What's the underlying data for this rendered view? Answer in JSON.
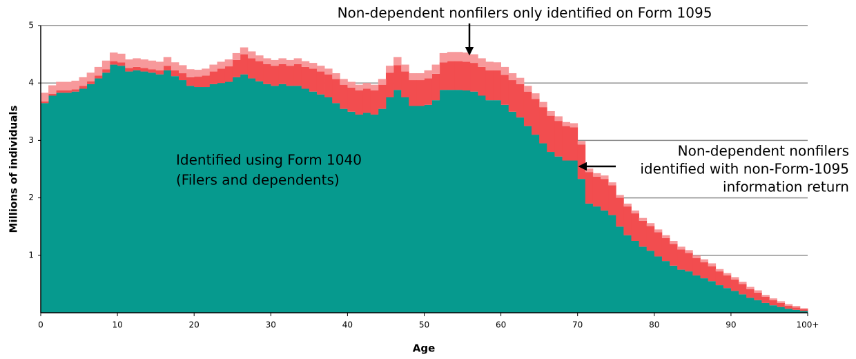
{
  "chart_data": {
    "type": "stacked-step-area",
    "xlabel": "Age",
    "ylabel": "Millions of individuals",
    "x": [
      0,
      1,
      2,
      3,
      4,
      5,
      6,
      7,
      8,
      9,
      10,
      11,
      12,
      13,
      14,
      15,
      16,
      17,
      18,
      19,
      20,
      21,
      22,
      23,
      24,
      25,
      26,
      27,
      28,
      29,
      30,
      31,
      32,
      33,
      34,
      35,
      36,
      37,
      38,
      39,
      40,
      41,
      42,
      43,
      44,
      45,
      46,
      47,
      48,
      49,
      50,
      51,
      52,
      53,
      54,
      55,
      56,
      57,
      58,
      59,
      60,
      61,
      62,
      63,
      64,
      65,
      66,
      67,
      68,
      69,
      70,
      71,
      72,
      73,
      74,
      75,
      76,
      77,
      78,
      79,
      80,
      81,
      82,
      83,
      84,
      85,
      86,
      87,
      88,
      89,
      90,
      91,
      92,
      93,
      94,
      95,
      96,
      97,
      98,
      99
    ],
    "xlim": [
      0,
      100
    ],
    "xticks": [
      0,
      10,
      20,
      30,
      40,
      50,
      60,
      70,
      80,
      90,
      {
        "value": 100,
        "label": "100+"
      }
    ],
    "ylim": [
      0,
      5
    ],
    "yticks": [
      1,
      2,
      3,
      4,
      5
    ],
    "grid": true,
    "series": [
      {
        "name": [
          "Identified using Form 1040",
          "(Filers and dependents)"
        ],
        "color": "#069a8e",
        "values": [
          3.65,
          3.78,
          3.83,
          3.83,
          3.85,
          3.9,
          3.98,
          4.08,
          4.18,
          4.32,
          4.3,
          4.2,
          4.22,
          4.2,
          4.18,
          4.15,
          4.22,
          4.12,
          4.05,
          3.95,
          3.93,
          3.93,
          3.98,
          4.0,
          4.02,
          4.1,
          4.15,
          4.08,
          4.03,
          3.98,
          3.95,
          3.98,
          3.95,
          3.95,
          3.9,
          3.85,
          3.8,
          3.75,
          3.65,
          3.55,
          3.5,
          3.45,
          3.48,
          3.45,
          3.55,
          3.75,
          3.88,
          3.75,
          3.6,
          3.6,
          3.62,
          3.7,
          3.88,
          3.88,
          3.88,
          3.87,
          3.85,
          3.78,
          3.7,
          3.7,
          3.62,
          3.5,
          3.4,
          3.25,
          3.1,
          2.95,
          2.8,
          2.72,
          2.65,
          2.65,
          2.33,
          1.9,
          1.85,
          1.78,
          1.7,
          1.5,
          1.35,
          1.25,
          1.15,
          1.08,
          0.98,
          0.9,
          0.82,
          0.75,
          0.72,
          0.65,
          0.6,
          0.55,
          0.48,
          0.43,
          0.38,
          0.32,
          0.26,
          0.22,
          0.17,
          0.13,
          0.1,
          0.07,
          0.05,
          0.03
        ]
      },
      {
        "name": [
          "Non-dependent nonfilers",
          "identified with non-Form-1095",
          "information return"
        ],
        "color": "#f24d4f",
        "values": [
          0.03,
          0.03,
          0.04,
          0.04,
          0.04,
          0.05,
          0.05,
          0.05,
          0.06,
          0.06,
          0.06,
          0.06,
          0.06,
          0.06,
          0.06,
          0.07,
          0.08,
          0.1,
          0.12,
          0.15,
          0.18,
          0.2,
          0.22,
          0.25,
          0.27,
          0.3,
          0.35,
          0.35,
          0.35,
          0.35,
          0.35,
          0.35,
          0.35,
          0.38,
          0.38,
          0.4,
          0.4,
          0.4,
          0.42,
          0.42,
          0.42,
          0.42,
          0.42,
          0.42,
          0.42,
          0.43,
          0.43,
          0.45,
          0.45,
          0.45,
          0.46,
          0.46,
          0.48,
          0.5,
          0.5,
          0.5,
          0.5,
          0.5,
          0.52,
          0.52,
          0.52,
          0.55,
          0.58,
          0.6,
          0.62,
          0.63,
          0.63,
          0.62,
          0.6,
          0.58,
          0.6,
          0.55,
          0.52,
          0.55,
          0.52,
          0.5,
          0.5,
          0.48,
          0.45,
          0.43,
          0.42,
          0.4,
          0.38,
          0.35,
          0.32,
          0.3,
          0.28,
          0.26,
          0.24,
          0.22,
          0.2,
          0.18,
          0.15,
          0.13,
          0.11,
          0.09,
          0.07,
          0.05,
          0.04,
          0.03
        ]
      },
      {
        "name": [
          "Non-dependent nonfilers only identified on Form 1095"
        ],
        "color": "#f7999b",
        "values": [
          0.15,
          0.15,
          0.15,
          0.15,
          0.15,
          0.15,
          0.15,
          0.15,
          0.15,
          0.15,
          0.15,
          0.15,
          0.15,
          0.15,
          0.15,
          0.15,
          0.15,
          0.14,
          0.14,
          0.14,
          0.12,
          0.12,
          0.12,
          0.12,
          0.12,
          0.12,
          0.12,
          0.12,
          0.1,
          0.1,
          0.1,
          0.1,
          0.1,
          0.1,
          0.1,
          0.1,
          0.1,
          0.1,
          0.1,
          0.1,
          0.1,
          0.1,
          0.1,
          0.1,
          0.1,
          0.12,
          0.14,
          0.12,
          0.12,
          0.12,
          0.14,
          0.16,
          0.16,
          0.16,
          0.16,
          0.16,
          0.15,
          0.15,
          0.15,
          0.14,
          0.14,
          0.12,
          0.11,
          0.1,
          0.1,
          0.09,
          0.08,
          0.08,
          0.07,
          0.07,
          0.06,
          0.06,
          0.06,
          0.06,
          0.05,
          0.05,
          0.05,
          0.05,
          0.05,
          0.05,
          0.05,
          0.05,
          0.05,
          0.05,
          0.05,
          0.05,
          0.05,
          0.05,
          0.04,
          0.04,
          0.04,
          0.04,
          0.04,
          0.04,
          0.03,
          0.03,
          0.03,
          0.03,
          0.03,
          0.02
        ]
      }
    ]
  }
}
